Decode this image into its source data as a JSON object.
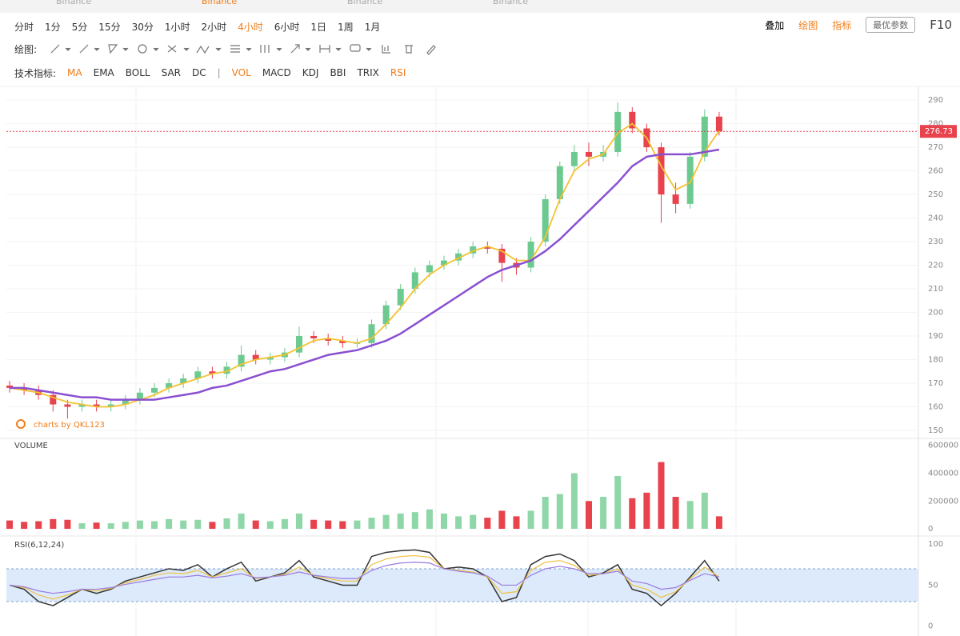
{
  "tabs": [
    {
      "label": "Binance",
      "active": false
    },
    {
      "label": "Binance",
      "active": true
    },
    {
      "label": "Binance",
      "active": false
    },
    {
      "label": "Binance",
      "active": false
    }
  ],
  "toolbar": {
    "intervals": [
      {
        "label": "分时",
        "active": false
      },
      {
        "label": "1分",
        "active": false
      },
      {
        "label": "5分",
        "active": false
      },
      {
        "label": "15分",
        "active": false
      },
      {
        "label": "30分",
        "active": false
      },
      {
        "label": "1小时",
        "active": false
      },
      {
        "label": "2小时",
        "active": false
      },
      {
        "label": "4小时",
        "active": true
      },
      {
        "label": "6小时",
        "active": false
      },
      {
        "label": "1日",
        "active": false
      },
      {
        "label": "1周",
        "active": false
      },
      {
        "label": "1月",
        "active": false
      }
    ],
    "right_buttons": [
      {
        "label": "叠加",
        "active": false
      },
      {
        "label": "绘图",
        "active": true
      },
      {
        "label": "指标",
        "active": true
      }
    ],
    "params_button": "最优参数",
    "f10": "F10",
    "draw_label": "绘图:",
    "indicator_label": "技术指标:",
    "indicators_main": [
      {
        "label": "MA",
        "active": true
      },
      {
        "label": "EMA",
        "active": false
      },
      {
        "label": "BOLL",
        "active": false
      },
      {
        "label": "SAR",
        "active": false
      },
      {
        "label": "DC",
        "active": false
      }
    ],
    "indicators_sub": [
      {
        "label": "VOL",
        "active": true
      },
      {
        "label": "MACD",
        "active": false
      },
      {
        "label": "KDJ",
        "active": false
      },
      {
        "label": "BBI",
        "active": false
      },
      {
        "label": "TRIX",
        "active": false
      },
      {
        "label": "RSI",
        "active": true
      }
    ]
  },
  "watermark": "charts by QKL123",
  "chart_data": [
    {
      "type": "candlestick",
      "open": [
        169,
        168,
        167,
        165,
        161,
        160,
        161,
        160,
        161,
        163,
        166,
        168,
        170,
        172,
        175,
        174,
        177,
        182,
        180,
        181,
        183,
        190,
        189,
        188,
        187,
        187,
        195,
        203,
        210,
        217,
        220,
        222,
        225,
        228,
        227,
        221,
        219,
        230,
        248,
        262,
        268,
        266,
        268,
        285,
        278,
        270,
        250,
        246,
        266,
        283
      ],
      "high": [
        171,
        170,
        169,
        167,
        163,
        163,
        163,
        163,
        165,
        168,
        170,
        172,
        174,
        177,
        177,
        179,
        186,
        184,
        183,
        185,
        194,
        192,
        191,
        190,
        189,
        197,
        205,
        212,
        219,
        222,
        224,
        227,
        230,
        230,
        229,
        223,
        232,
        250,
        264,
        271,
        272,
        271,
        289,
        287,
        280,
        272,
        255,
        268,
        286,
        285
      ],
      "low": [
        166,
        165,
        163,
        158,
        155,
        158,
        158,
        158,
        159,
        161,
        164,
        166,
        168,
        170,
        172,
        172,
        175,
        178,
        178,
        179,
        181,
        187,
        186,
        185,
        185,
        185,
        193,
        201,
        208,
        215,
        218,
        220,
        223,
        225,
        213,
        216,
        217,
        228,
        246,
        260,
        262,
        264,
        266,
        276,
        268,
        238,
        242,
        244,
        264,
        275
      ],
      "close": [
        168,
        167,
        165,
        161,
        160,
        161,
        160,
        161,
        163,
        166,
        168,
        170,
        172,
        175,
        174,
        177,
        182,
        180,
        181,
        183,
        190,
        189,
        188,
        187,
        187,
        195,
        203,
        210,
        217,
        220,
        222,
        225,
        228,
        227,
        221,
        219,
        230,
        248,
        262,
        268,
        266,
        268,
        285,
        278,
        270,
        250,
        246,
        266,
        283,
        276.73
      ],
      "up_color": "#6cc98f",
      "down_color": "#e8424c",
      "series": [
        {
          "color": "#f2c230",
          "values": [
            168,
            167,
            166,
            164,
            162,
            161,
            160,
            160,
            161,
            163,
            165,
            168,
            170,
            172,
            174,
            175,
            178,
            180,
            181,
            182,
            185,
            188,
            189,
            188,
            187,
            189,
            195,
            202,
            210,
            216,
            220,
            223,
            226,
            228,
            226,
            222,
            222,
            232,
            248,
            260,
            265,
            267,
            276,
            280,
            274,
            262,
            252,
            255,
            268,
            277
          ]
        },
        {
          "color": "#8a4fd1",
          "values": [
            168,
            168,
            167,
            166,
            165,
            164,
            164,
            163,
            163,
            163,
            163,
            164,
            165,
            166,
            168,
            169,
            171,
            173,
            175,
            176,
            178,
            180,
            182,
            183,
            184,
            186,
            188,
            191,
            195,
            199,
            203,
            207,
            211,
            215,
            218,
            220,
            222,
            226,
            231,
            237,
            243,
            249,
            255,
            262,
            266,
            267,
            267,
            267,
            268,
            269
          ]
        }
      ],
      "ylim": [
        146.6,
        295.8
      ],
      "yticks": [
        150,
        160,
        170,
        180,
        190,
        200,
        210,
        220,
        230,
        240,
        250,
        260,
        270,
        280,
        290
      ],
      "grid": true,
      "last_price_line": true
    },
    {
      "type": "bar",
      "title": "VOLUME",
      "values": [
        60000,
        50000,
        55000,
        70000,
        65000,
        40000,
        45000,
        40000,
        50000,
        60000,
        55000,
        70000,
        60000,
        65000,
        50000,
        75000,
        110000,
        60000,
        55000,
        70000,
        110000,
        65000,
        60000,
        55000,
        60000,
        80000,
        100000,
        110000,
        120000,
        140000,
        110000,
        90000,
        100000,
        80000,
        130000,
        90000,
        130000,
        230000,
        250000,
        400000,
        200000,
        230000,
        380000,
        220000,
        260000,
        480000,
        230000,
        200000,
        260000,
        90000
      ],
      "up_color": "#8fd6a8",
      "down_color": "#e8424c",
      "ylim": [
        -40000,
        650000
      ],
      "yticks": [
        0,
        200000,
        400000,
        600000
      ]
    },
    {
      "type": "line",
      "title": "RSI(6,12,24)",
      "series": [
        {
          "color": "#333333",
          "values": [
            50,
            45,
            30,
            25,
            35,
            45,
            40,
            45,
            55,
            60,
            65,
            70,
            68,
            75,
            60,
            70,
            78,
            55,
            60,
            65,
            80,
            60,
            55,
            50,
            50,
            85,
            90,
            92,
            93,
            90,
            70,
            72,
            70,
            60,
            30,
            35,
            75,
            85,
            88,
            80,
            60,
            65,
            75,
            45,
            40,
            25,
            40,
            60,
            80,
            55
          ]
        },
        {
          "color": "#f0c040",
          "values": [
            50,
            47,
            38,
            33,
            38,
            45,
            43,
            46,
            53,
            57,
            62,
            65,
            64,
            68,
            60,
            65,
            70,
            58,
            60,
            63,
            72,
            62,
            58,
            55,
            55,
            75,
            82,
            85,
            86,
            84,
            70,
            68,
            66,
            60,
            40,
            42,
            68,
            78,
            80,
            74,
            62,
            64,
            70,
            50,
            45,
            35,
            42,
            58,
            72,
            60
          ]
        },
        {
          "color": "#9a7be0",
          "values": [
            50,
            48,
            43,
            40,
            42,
            45,
            45,
            47,
            51,
            54,
            57,
            60,
            60,
            62,
            59,
            61,
            64,
            59,
            60,
            62,
            66,
            62,
            60,
            58,
            58,
            68,
            74,
            77,
            78,
            77,
            70,
            67,
            65,
            61,
            50,
            50,
            62,
            70,
            73,
            70,
            64,
            64,
            67,
            55,
            52,
            45,
            47,
            56,
            64,
            60
          ]
        }
      ],
      "band": [
        30,
        70
      ],
      "band_color": "#dceafb",
      "ylim": [
        -12,
        108
      ],
      "yticks": [
        0,
        50,
        100
      ]
    }
  ]
}
